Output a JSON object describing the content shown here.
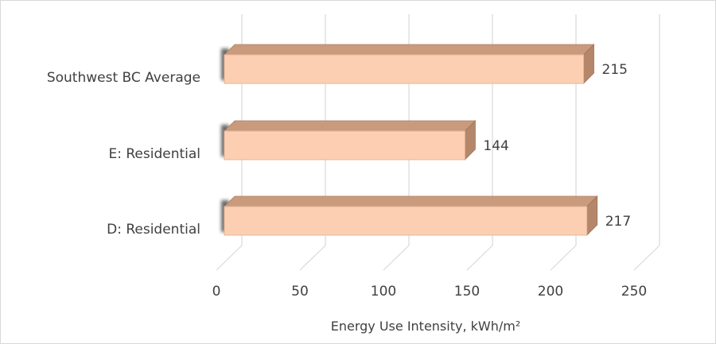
{
  "chart_data": {
    "type": "bar",
    "orientation": "horizontal",
    "style": "3d",
    "categories": [
      "Southwest BC Average",
      "E: Residential",
      "D: Residential"
    ],
    "values": [
      215,
      144,
      217
    ],
    "data_labels": [
      "215",
      "144",
      "217"
    ],
    "xlabel": "Energy Use Intensity, kWh/m²",
    "ylabel": "",
    "xlim": [
      0,
      250
    ],
    "x_ticks": [
      "0",
      "50",
      "100",
      "150",
      "200",
      "250"
    ],
    "grid": true,
    "legend": "none",
    "colors": {
      "bar_front": "#fdcfb2",
      "bar_top": "#c99a7c",
      "bar_side": "#b4876a",
      "gridline": "#d9d9d9"
    }
  }
}
